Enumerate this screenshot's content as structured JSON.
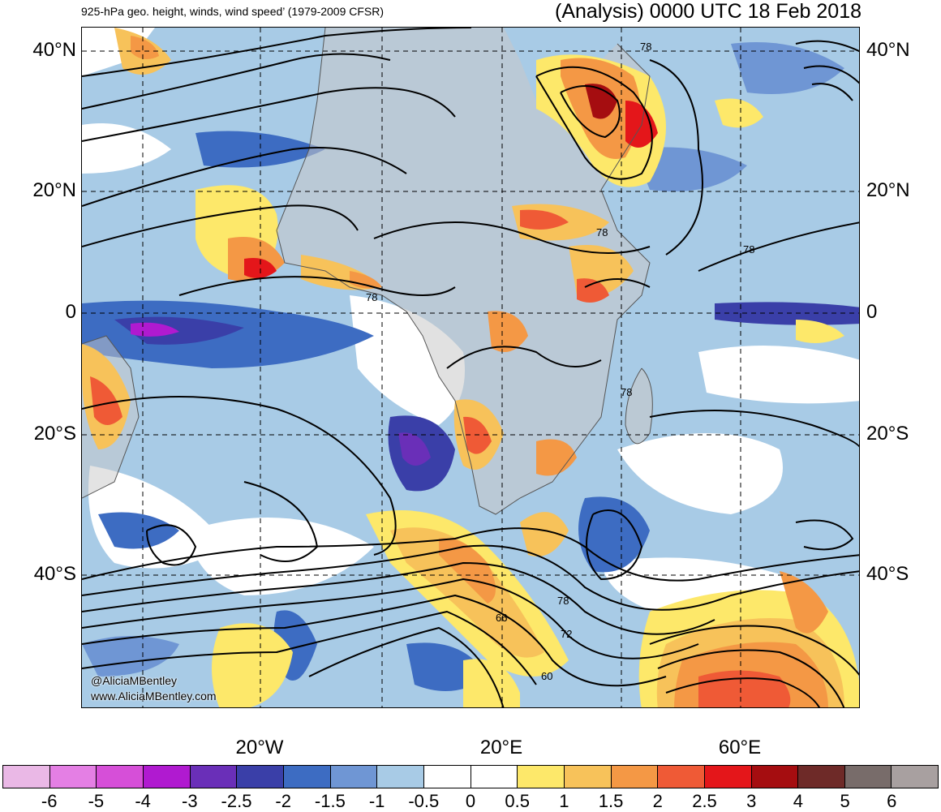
{
  "header": {
    "title_left": "925-hPa geo. height, winds, wind speed’ (1979-2009 CFSR)",
    "title_right": "(Analysis) 0000 UTC 18 Feb 2018"
  },
  "axes": {
    "lat_labels": [
      "40°N",
      "20°N",
      "0",
      "20°S",
      "40°S"
    ],
    "lon_labels": [
      "20°W",
      "20°E",
      "60°E"
    ]
  },
  "contour_labels": [
    "78",
    "78",
    "78",
    "78",
    "78",
    "78",
    "66",
    "72",
    "60"
  ],
  "credit": {
    "handle": "@AliciaMBentley",
    "website": "www.AliciaMBentley.com"
  },
  "colorbar": {
    "labels": [
      "-6",
      "-5",
      "-4",
      "-3",
      "-2.5",
      "-2",
      "-1.5",
      "-1",
      "-0.5",
      "0",
      "0.5",
      "1",
      "1.5",
      "2",
      "2.5",
      "3",
      "4",
      "5",
      "6"
    ],
    "colors": [
      "#eab8e6",
      "#e47fe4",
      "#d64fd8",
      "#b01ad0",
      "#6a2fb8",
      "#3a3fa8",
      "#3d6cc2",
      "#6f96d4",
      "#a8cbe6",
      "#ffffff",
      "#ffffff",
      "#fde86a",
      "#f7c25a",
      "#f49845",
      "#ef5a36",
      "#e4161a",
      "#a50d10",
      "#6e2a28",
      "#786c6a",
      "#a8a0a0"
    ]
  },
  "style_colors": {
    "land": "#c8c8c8",
    "ocean_base": "#a8cbe6",
    "contour": "#000000",
    "grid": "#000000"
  }
}
